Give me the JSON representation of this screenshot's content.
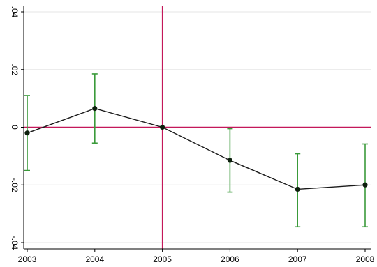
{
  "chart_data": {
    "type": "line",
    "title": "",
    "xlabel": "",
    "ylabel": "",
    "x": [
      2003,
      2004,
      2005,
      2006,
      2007,
      2008
    ],
    "xlim": [
      2003,
      2008
    ],
    "ylim": [
      -0.04,
      0.04
    ],
    "grid": "horizontal",
    "legend": "none",
    "x_ticks": [
      {
        "value": 2003,
        "label": "2003"
      },
      {
        "value": 2004,
        "label": "2004"
      },
      {
        "value": 2005,
        "label": "2005"
      },
      {
        "value": 2006,
        "label": "2006"
      },
      {
        "value": 2007,
        "label": "2007"
      },
      {
        "value": 2008,
        "label": "2008"
      }
    ],
    "y_ticks": [
      {
        "value": 0.04,
        "label": ".04"
      },
      {
        "value": 0.02,
        "label": ".02"
      },
      {
        "value": 0,
        "label": "0"
      },
      {
        "value": -0.02,
        "label": "-.02"
      },
      {
        "value": -0.04,
        "label": "-.04"
      }
    ],
    "series": [
      {
        "values": [
          -0.002,
          0.0065,
          0.0,
          -0.0115,
          -0.0215,
          -0.02
        ],
        "ci_lower": [
          -0.015,
          -0.0055,
          0.0,
          -0.0225,
          -0.0345,
          -0.0345
        ],
        "ci_upper": [
          0.011,
          0.0185,
          0.0,
          -0.0005,
          -0.0092,
          -0.0058
        ]
      }
    ],
    "reference_lines": {
      "x": 2005,
      "y": 0
    },
    "colors": {
      "line": "#1a1a1a",
      "marker": "#0d1f0d",
      "ci": "#3a9a3a",
      "reference": "#c4185a",
      "grid": "#e6e6e6",
      "axis": "#000000"
    }
  }
}
